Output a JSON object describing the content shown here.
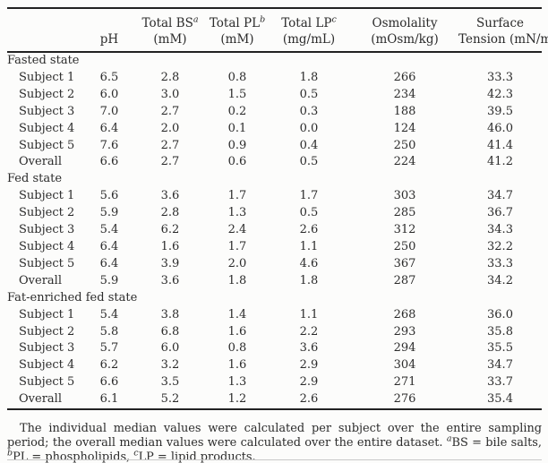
{
  "colors": {
    "text": "#2b2b2b",
    "rule": "#222222",
    "faint_rule": "#c9c9c9",
    "background": "#fcfcfb"
  },
  "table": {
    "columns": [
      {
        "line1": "",
        "sup": "",
        "line2": "pH"
      },
      {
        "line1": "Total BS",
        "sup": "a",
        "line2": "(mM)"
      },
      {
        "line1": "Total PL",
        "sup": "b",
        "line2": "(mM)"
      },
      {
        "line1": "Total LP",
        "sup": "c",
        "line2": "(mg/mL)"
      },
      {
        "line1": "Osmolality",
        "sup": "",
        "line2": "(mOsm/kg)"
      },
      {
        "line1": "Surface",
        "sup": "",
        "line2": "Tension (mN/m)"
      }
    ],
    "groups": [
      {
        "label": "Fasted state",
        "rows": [
          {
            "label": "Subject 1",
            "values": [
              "6.5",
              "2.8",
              "0.8",
              "1.8",
              "266",
              "33.3"
            ]
          },
          {
            "label": "Subject 2",
            "values": [
              "6.0",
              "3.0",
              "1.5",
              "0.5",
              "234",
              "42.3"
            ]
          },
          {
            "label": "Subject 3",
            "values": [
              "7.0",
              "2.7",
              "0.2",
              "0.3",
              "188",
              "39.5"
            ]
          },
          {
            "label": "Subject 4",
            "values": [
              "6.4",
              "2.0",
              "0.1",
              "0.0",
              "124",
              "46.0"
            ]
          },
          {
            "label": "Subject 5",
            "values": [
              "7.6",
              "2.7",
              "0.9",
              "0.4",
              "250",
              "41.4"
            ]
          },
          {
            "label": "Overall",
            "values": [
              "6.6",
              "2.7",
              "0.6",
              "0.5",
              "224",
              "41.2"
            ]
          }
        ]
      },
      {
        "label": "Fed state",
        "rows": [
          {
            "label": "Subject 1",
            "values": [
              "5.6",
              "3.6",
              "1.7",
              "1.7",
              "303",
              "34.7"
            ]
          },
          {
            "label": "Subject 2",
            "values": [
              "5.9",
              "2.8",
              "1.3",
              "0.5",
              "285",
              "36.7"
            ]
          },
          {
            "label": "Subject 3",
            "values": [
              "5.4",
              "6.2",
              "2.4",
              "2.6",
              "312",
              "34.3"
            ]
          },
          {
            "label": "Subject 4",
            "values": [
              "6.4",
              "1.6",
              "1.7",
              "1.1",
              "250",
              "32.2"
            ]
          },
          {
            "label": "Subject 5",
            "values": [
              "6.4",
              "3.9",
              "2.0",
              "4.6",
              "367",
              "33.3"
            ]
          },
          {
            "label": "Overall",
            "values": [
              "5.9",
              "3.6",
              "1.8",
              "1.8",
              "287",
              "34.2"
            ]
          }
        ]
      },
      {
        "label": "Fat-enriched fed state",
        "rows": [
          {
            "label": "Subject 1",
            "values": [
              "5.4",
              "3.8",
              "1.4",
              "1.1",
              "268",
              "36.0"
            ]
          },
          {
            "label": "Subject 2",
            "values": [
              "5.8",
              "6.8",
              "1.6",
              "2.2",
              "293",
              "35.8"
            ]
          },
          {
            "label": "Subject 3",
            "values": [
              "5.7",
              "6.0",
              "0.8",
              "3.6",
              "294",
              "35.5"
            ]
          },
          {
            "label": "Subject 4",
            "values": [
              "6.2",
              "3.2",
              "1.6",
              "2.9",
              "304",
              "34.7"
            ]
          },
          {
            "label": "Subject 5",
            "values": [
              "6.6",
              "3.5",
              "1.3",
              "2.9",
              "271",
              "33.7"
            ]
          },
          {
            "label": "Overall",
            "values": [
              "6.1",
              "5.2",
              "1.2",
              "2.6",
              "276",
              "35.4"
            ]
          }
        ]
      }
    ]
  },
  "footnote": {
    "part1": "The individual median values were calculated per subject over the entire sampling period; the overall median values were calculated over the entire dataset. ",
    "sup_a": "a",
    "part_a": "BS = bile salts, ",
    "sup_b": "b",
    "part_b": "PL = phospholipids, ",
    "sup_c": "c",
    "part_c": "LP = lipid products."
  }
}
